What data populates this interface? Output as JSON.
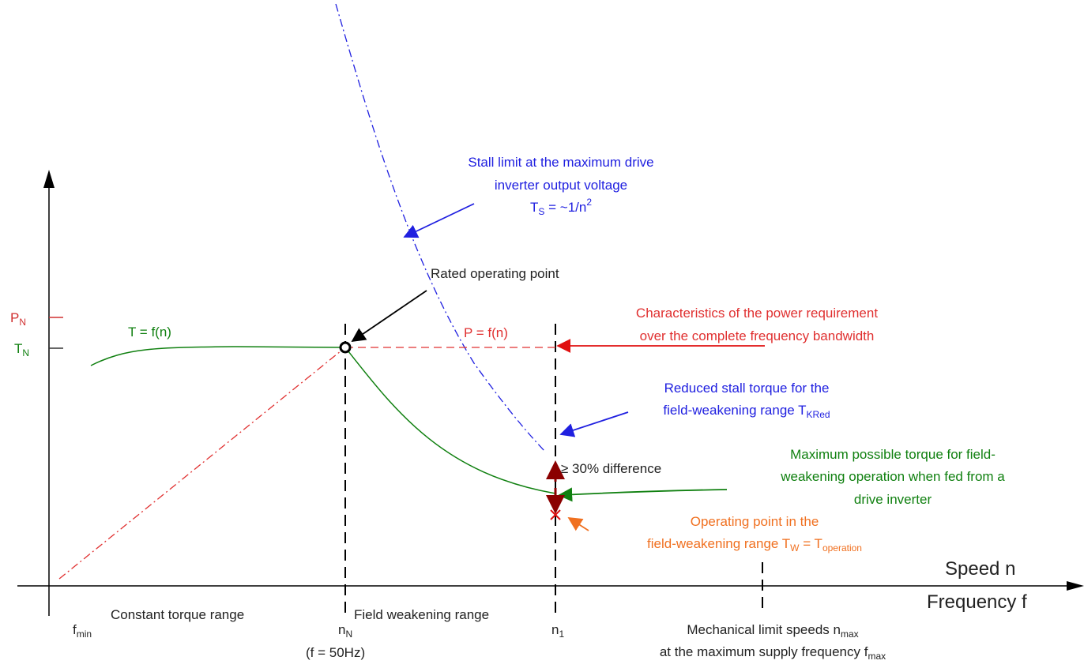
{
  "axes": {
    "x_label_1": "Speed n",
    "x_label_2": "Frequency f",
    "p_n": {
      "base": "P",
      "sub": "N"
    },
    "t_n": {
      "base": "T",
      "sub": "N"
    }
  },
  "curves": {
    "torque": "T = f(n)",
    "power": "P = f(n)"
  },
  "annotations": {
    "stall": {
      "line1": "Stall limit at the maximum drive",
      "line2": "inverter output voltage",
      "base": "T",
      "sub": "S",
      "rest": " = ~1/n",
      "sup": "2"
    },
    "rated": "Rated operating point",
    "power_req": {
      "line1": "Characteristics of the power requirement",
      "line2": "over the complete frequency bandwidth"
    },
    "reduced": {
      "line1": "Reduced stall torque for the",
      "line2": "field-weakening range  T",
      "sub": "KRed"
    },
    "difference": "≥ 30% difference",
    "max_torque": {
      "line1": "Maximum possible torque for field-",
      "line2": "weakening operation when fed from a",
      "line3": "drive inverter"
    },
    "operating": {
      "line1": "Operating point in the",
      "line2": "field-weakening range  T",
      "sub1": "W",
      "mid": " =  T",
      "sub2": "operation"
    }
  },
  "bottom": {
    "f_min": {
      "base": "f",
      "sub": "min"
    },
    "constant": "Constant torque range",
    "n_n": {
      "base": "n",
      "sub": "N"
    },
    "f50": "(f = 50Hz)",
    "field": "Field weakening range",
    "n_1": {
      "base": "n",
      "sub": "1"
    },
    "mech": {
      "line1": "Mechanical limit speeds n",
      "sub1": "max",
      "line2": "at the maximum supply frequency f",
      "sub2": "max"
    }
  }
}
